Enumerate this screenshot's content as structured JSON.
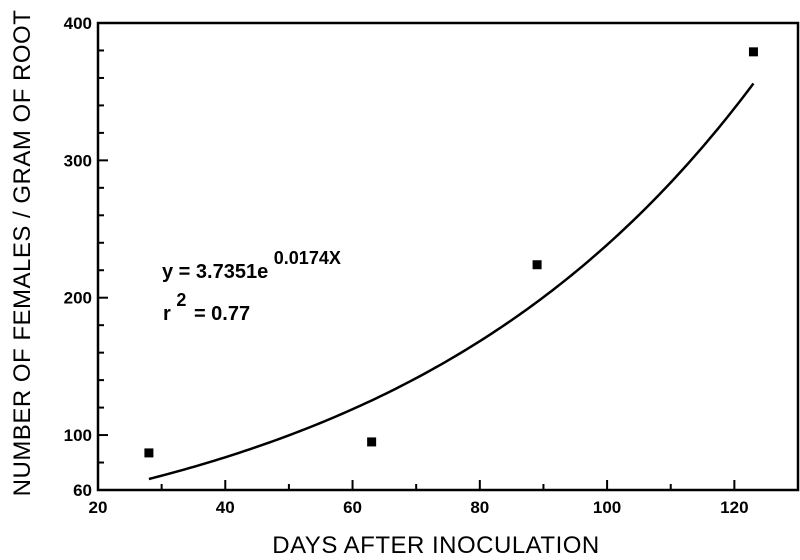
{
  "chart_data": {
    "type": "scatter",
    "title": "",
    "xlabel": "DAYS AFTER INOCULATION",
    "ylabel": "NUMBER OF FEMALES / GRAM OF ROOT",
    "xlim": [
      20,
      130
    ],
    "ylim": [
      60,
      400
    ],
    "x_ticks": [
      20,
      40,
      60,
      80,
      100,
      120
    ],
    "y_ticks": [
      60,
      100,
      200,
      300,
      400
    ],
    "x_tick_labels": [
      "20",
      "40",
      "60",
      "80",
      "100",
      "120"
    ],
    "y_tick_labels": [
      "60",
      "100",
      "200",
      "300",
      "400"
    ],
    "grid": false,
    "points": [
      {
        "x": 28,
        "y": 87
      },
      {
        "x": 63,
        "y": 95
      },
      {
        "x": 89,
        "y": 224
      },
      {
        "x": 123,
        "y": 379
      }
    ],
    "fit": {
      "type": "exponential",
      "a": 3.7351,
      "b": 0.0174,
      "x_range": [
        28,
        123
      ],
      "equation_prefix": "y = 3.7351e",
      "equation_exponent": "0.0174X",
      "r2_prefix": "r",
      "r2_exponent": "2",
      "r2_value": "= 0.77"
    }
  }
}
